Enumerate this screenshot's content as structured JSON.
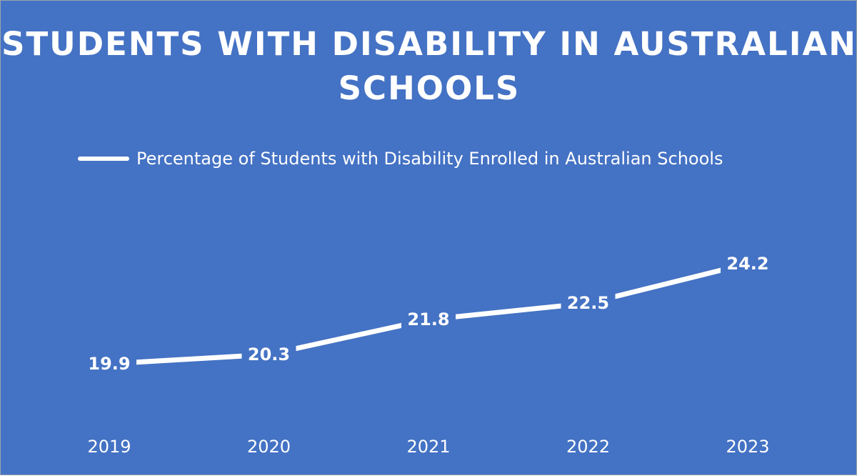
{
  "chart_data": {
    "type": "line",
    "title": "STUDENTS WITH DISABILITY IN AUSTRALIAN SCHOOLS",
    "categories": [
      "2019",
      "2020",
      "2021",
      "2022",
      "2023"
    ],
    "series": [
      {
        "name": "Percentage of Students with Disability Enrolled in Australian Schools",
        "values": [
          19.9,
          20.3,
          21.8,
          22.5,
          24.2
        ],
        "color": "#ffffff"
      }
    ],
    "data_labels": [
      "19.9",
      "20.3",
      "21.8",
      "22.5",
      "24.2"
    ],
    "xlabel": "",
    "ylabel": "",
    "legend_position": "top-left",
    "grid": false,
    "y_axis_visible": false,
    "drop_lines": true,
    "background_color": "#4472c4"
  }
}
